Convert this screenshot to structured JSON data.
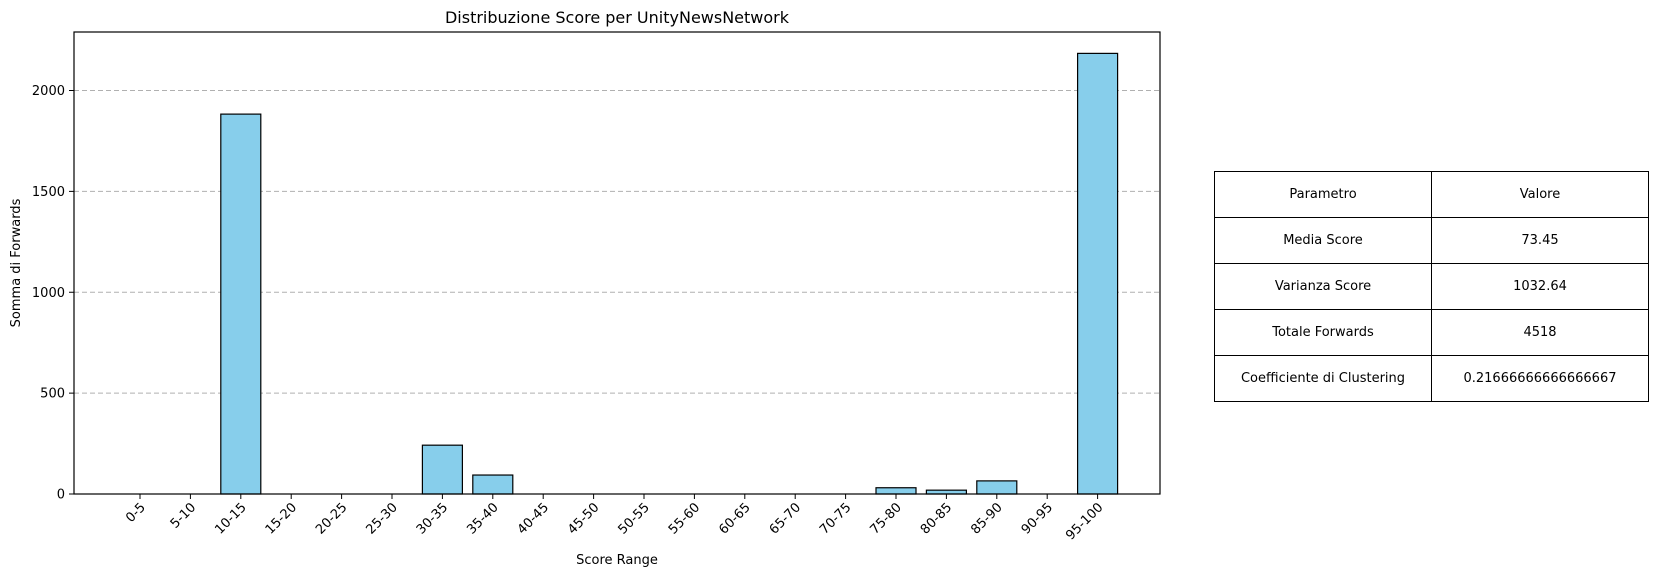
{
  "chart_data": {
    "type": "bar",
    "title": "Distribuzione Score per UnityNewsNetwork",
    "xlabel": "Score Range",
    "ylabel": "Somma di Forwards",
    "categories": [
      "0-5",
      "5-10",
      "10-15",
      "15-20",
      "20-25",
      "25-30",
      "30-35",
      "35-40",
      "40-45",
      "45-50",
      "50-55",
      "55-60",
      "60-65",
      "65-70",
      "70-75",
      "75-80",
      "80-85",
      "85-90",
      "90-95",
      "95-100"
    ],
    "values": [
      0,
      0,
      1883,
      0,
      0,
      0,
      242,
      94,
      0,
      0,
      0,
      0,
      0,
      0,
      0,
      31,
      19,
      65,
      0,
      2184
    ],
    "ylim": [
      0,
      2290
    ],
    "yticks": [
      0,
      500,
      1000,
      1500,
      2000
    ],
    "grid": "y-dashed",
    "bar_color": "#87CEEB",
    "edge_color": "#000000"
  },
  "table": {
    "header": {
      "param": "Parametro",
      "value": "Valore"
    },
    "rows": [
      {
        "param": "Media Score",
        "value": "73.45"
      },
      {
        "param": "Varianza Score",
        "value": "1032.64"
      },
      {
        "param": "Totale Forwards",
        "value": "4518"
      },
      {
        "param": "Coefficiente di Clustering",
        "value": "0.21666666666666667"
      }
    ]
  }
}
